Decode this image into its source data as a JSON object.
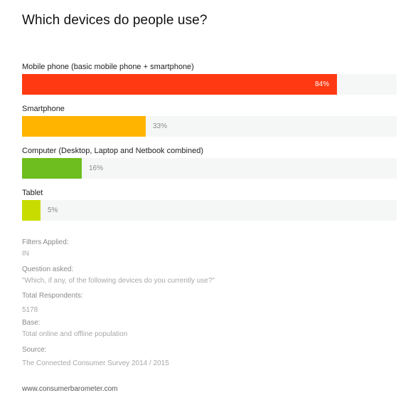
{
  "chart_data": {
    "type": "bar",
    "orientation": "horizontal",
    "title": "Which devices do people use?",
    "categories": [
      "Mobile phone (basic mobile phone + smartphone)",
      "Smartphone",
      "Computer (Desktop, Laptop and Netbook combined)",
      "Tablet"
    ],
    "values": [
      84,
      33,
      16,
      5
    ],
    "value_labels": [
      "84%",
      "33%",
      "16%",
      "5%"
    ],
    "colors": [
      "#ff3a12",
      "#ffb400",
      "#6ebe1f",
      "#c8dc00"
    ],
    "xlim": [
      0,
      100
    ],
    "grid": false
  },
  "meta": {
    "filters_label": "Filters Applied:",
    "filters_value": "IN",
    "question_label": "Question asked:",
    "question_value": "\"Which, if any, of the following devices do you currently use?\"",
    "respondents_label": "Total Respondents:",
    "respondents_value": "5178",
    "base_label": "Base:",
    "base_value": "Total online and offline population",
    "source_label": "Source:",
    "source_value": "The Connected Consumer Survey 2014 / 2015"
  },
  "footer": "www.consumerbarometer.com"
}
